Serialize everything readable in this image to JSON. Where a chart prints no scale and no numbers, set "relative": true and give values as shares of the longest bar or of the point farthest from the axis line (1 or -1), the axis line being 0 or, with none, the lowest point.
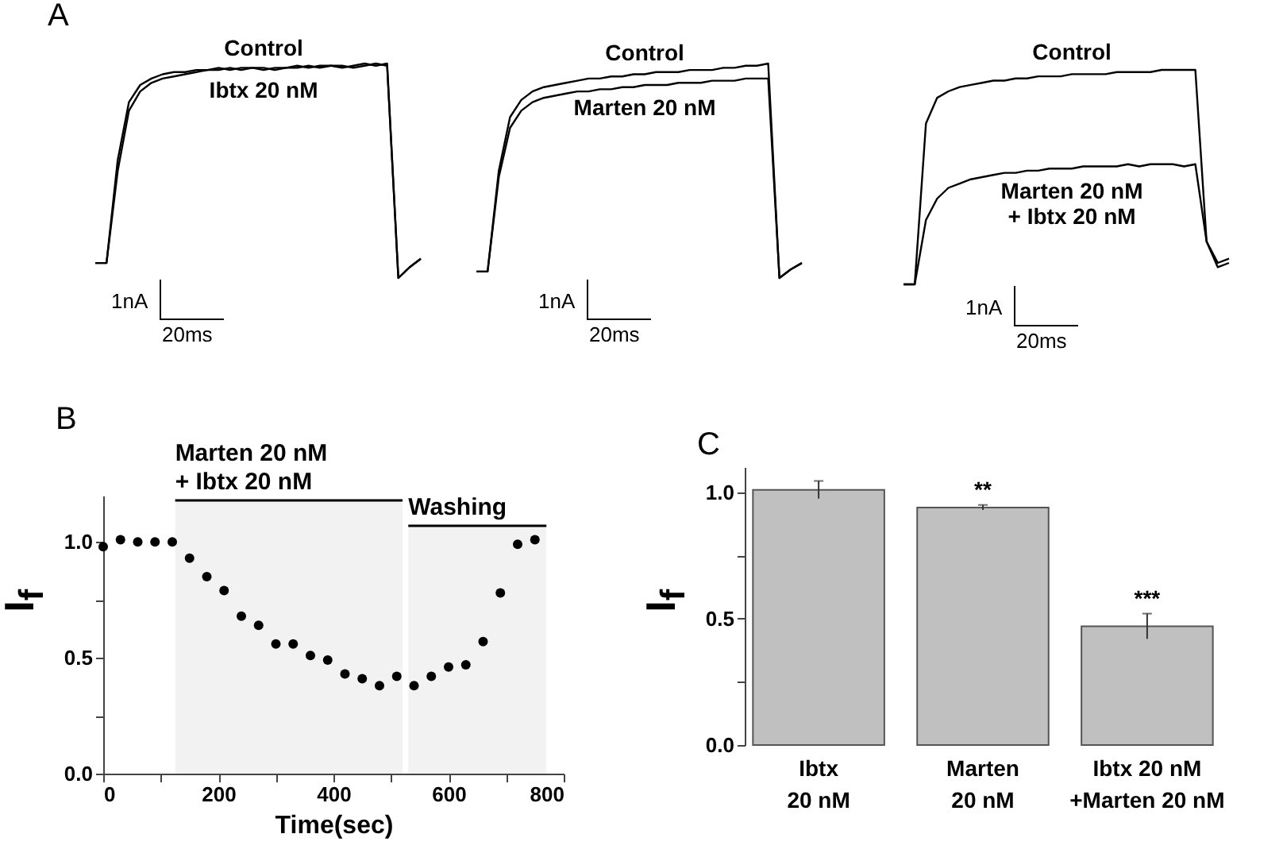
{
  "chart_data": [
    {
      "type": "line",
      "title": "A",
      "relative": true,
      "annotations": [
        "1nA",
        "20ms"
      ],
      "categories": [
        null,
        null,
        null,
        null,
        null,
        null,
        null,
        null,
        null,
        null,
        null,
        null,
        null,
        null,
        null,
        null,
        null,
        null,
        null,
        null,
        null,
        null,
        null,
        null,
        null,
        null,
        null,
        null,
        null,
        null
      ],
      "series": [
        {
          "name": "Control",
          "color": "#000000",
          "values": [
            0.07,
            0.07,
            0.55,
            0.82,
            0.9,
            0.93,
            0.95,
            0.96,
            0.96,
            0.97,
            0.97,
            0.98,
            0.97,
            0.98,
            0.98,
            0.97,
            0.98,
            0.98,
            0.99,
            0.98,
            0.99,
            0.99,
            0.98,
            0.99,
            1.0,
            0.99,
            1.0,
            0.0,
            0.05,
            0.09
          ]
        },
        {
          "name": "Ibtx 20 nM",
          "color": "#000000",
          "values": [
            0.07,
            0.07,
            0.5,
            0.78,
            0.87,
            0.91,
            0.93,
            0.94,
            0.95,
            0.96,
            0.97,
            0.97,
            0.98,
            0.97,
            0.98,
            0.98,
            0.97,
            0.98,
            0.98,
            0.99,
            0.98,
            0.99,
            0.99,
            0.98,
            0.99,
            1.0,
            0.99,
            0.0,
            0.05,
            0.09
          ]
        }
      ]
    },
    {
      "type": "line",
      "relative": true,
      "annotations": [
        "1nA",
        "20ms"
      ],
      "categories": [
        null,
        null,
        null,
        null,
        null,
        null,
        null,
        null,
        null,
        null,
        null,
        null,
        null,
        null,
        null,
        null,
        null,
        null,
        null,
        null,
        null,
        null,
        null,
        null,
        null,
        null,
        null,
        null,
        null,
        null
      ],
      "series": [
        {
          "name": "Control",
          "color": "#000000",
          "values": [
            0.03,
            0.03,
            0.5,
            0.75,
            0.83,
            0.87,
            0.89,
            0.9,
            0.91,
            0.92,
            0.93,
            0.93,
            0.94,
            0.94,
            0.95,
            0.95,
            0.96,
            0.96,
            0.96,
            0.97,
            0.97,
            0.97,
            0.98,
            0.98,
            0.99,
            0.99,
            1.0,
            0.0,
            0.04,
            0.07
          ]
        },
        {
          "name": "Marten 20 nM",
          "color": "#000000",
          "values": [
            0.03,
            0.03,
            0.47,
            0.7,
            0.78,
            0.82,
            0.84,
            0.85,
            0.86,
            0.87,
            0.87,
            0.88,
            0.88,
            0.89,
            0.89,
            0.9,
            0.9,
            0.9,
            0.91,
            0.91,
            0.91,
            0.92,
            0.92,
            0.92,
            0.93,
            0.93,
            0.93,
            0.0,
            0.04,
            0.07
          ]
        }
      ]
    },
    {
      "type": "line",
      "relative": true,
      "annotations": [
        "1nA",
        "20ms"
      ],
      "categories": [
        null,
        null,
        null,
        null,
        null,
        null,
        null,
        null,
        null,
        null,
        null,
        null,
        null,
        null,
        null,
        null,
        null,
        null,
        null,
        null,
        null,
        null,
        null,
        null,
        null,
        null,
        null,
        null,
        null,
        null
      ],
      "series": [
        {
          "name": "Control",
          "color": "#000000",
          "values": [
            0.0,
            0.0,
            0.75,
            0.87,
            0.9,
            0.92,
            0.93,
            0.94,
            0.95,
            0.95,
            0.96,
            0.96,
            0.97,
            0.97,
            0.97,
            0.98,
            0.98,
            0.98,
            0.98,
            0.99,
            0.99,
            0.99,
            0.99,
            1.0,
            1.0,
            1.0,
            1.0,
            0.2,
            0.1,
            0.12
          ]
        },
        {
          "name": "Marten 20 nM\n+ Ibtx 20 nM",
          "color": "#000000",
          "values": [
            0.0,
            0.0,
            0.3,
            0.4,
            0.45,
            0.47,
            0.49,
            0.5,
            0.51,
            0.52,
            0.52,
            0.53,
            0.53,
            0.54,
            0.54,
            0.54,
            0.55,
            0.55,
            0.55,
            0.55,
            0.56,
            0.55,
            0.56,
            0.56,
            0.56,
            0.55,
            0.56,
            0.2,
            0.08,
            0.1
          ]
        }
      ]
    },
    {
      "type": "scatter",
      "title": "B",
      "xlabel": "Time(sec)",
      "ylabel": "I$_{f}$",
      "marker": "circle",
      "x": [
        0,
        30,
        60,
        90,
        120,
        150,
        180,
        210,
        240,
        270,
        300,
        330,
        360,
        390,
        420,
        450,
        480,
        510,
        540,
        570,
        600,
        630,
        660,
        690,
        720,
        750
      ],
      "series": [
        {
          "color": "#000000",
          "values": [
            0.98,
            1.01,
            1.0,
            1.0,
            1.0,
            0.93,
            0.85,
            0.79,
            0.68,
            0.64,
            0.56,
            0.56,
            0.51,
            0.49,
            0.43,
            0.41,
            0.38,
            0.42,
            0.38,
            0.42,
            0.46,
            0.47,
            0.57,
            0.78,
            0.99,
            1.01
          ]
        }
      ],
      "xlim": [
        0,
        800
      ],
      "xticks": [
        0,
        {
          "value": 100,
          "label": null
        },
        200,
        {
          "value": 300,
          "label": null
        },
        400,
        {
          "value": 500,
          "label": null
        },
        600,
        {
          "value": 700,
          "label": null
        },
        800
      ],
      "ylim": [
        0,
        1.2
      ],
      "yticks": [
        {
          "value": 0,
          "label": "0.0"
        },
        {
          "value": 0.25,
          "label": null
        },
        {
          "value": 0.5,
          "label": "0.5"
        },
        {
          "value": 0.75,
          "label": null
        },
        {
          "value": 1,
          "label": "1.0"
        }
      ],
      "bands": [
        {
          "axis": "x",
          "from": 125,
          "to": 520,
          "label": "Marten 20 nM\n+ Ibtx 20 nM",
          "color": "#000000"
        },
        {
          "axis": "x",
          "from": 530,
          "to": 770,
          "label": "Washing",
          "color": "#000000"
        }
      ]
    },
    {
      "type": "bar",
      "title": "C",
      "ylabel": "I$_{f}$",
      "categories": [
        "Ibtx\n20 nM",
        "Marten\n20 nM",
        "Ibtx 20 nM\n+Marten 20 nM"
      ],
      "values": [
        1.01,
        0.94,
        0.47
      ],
      "errors": [
        0.035,
        0.01,
        0.05
      ],
      "colors": [
        "#c0c0c0",
        "#c0c0c0",
        "#c0c0c0"
      ],
      "ylim": [
        0,
        1.1
      ],
      "yticks": [
        {
          "value": 0,
          "label": "0.0"
        },
        {
          "value": 0.25,
          "label": null
        },
        {
          "value": 0.5,
          "label": "0.5"
        },
        {
          "value": 0.75,
          "label": null
        },
        {
          "value": 1,
          "label": "1.0"
        }
      ],
      "annotations": [
        {
          "text": "**",
          "x": "Marten\n20 nM",
          "y": 0.95
        },
        {
          "text": "***",
          "x": "Ibtx 20 nM\n+Marten 20 nM",
          "y": 0.52
        }
      ]
    }
  ]
}
